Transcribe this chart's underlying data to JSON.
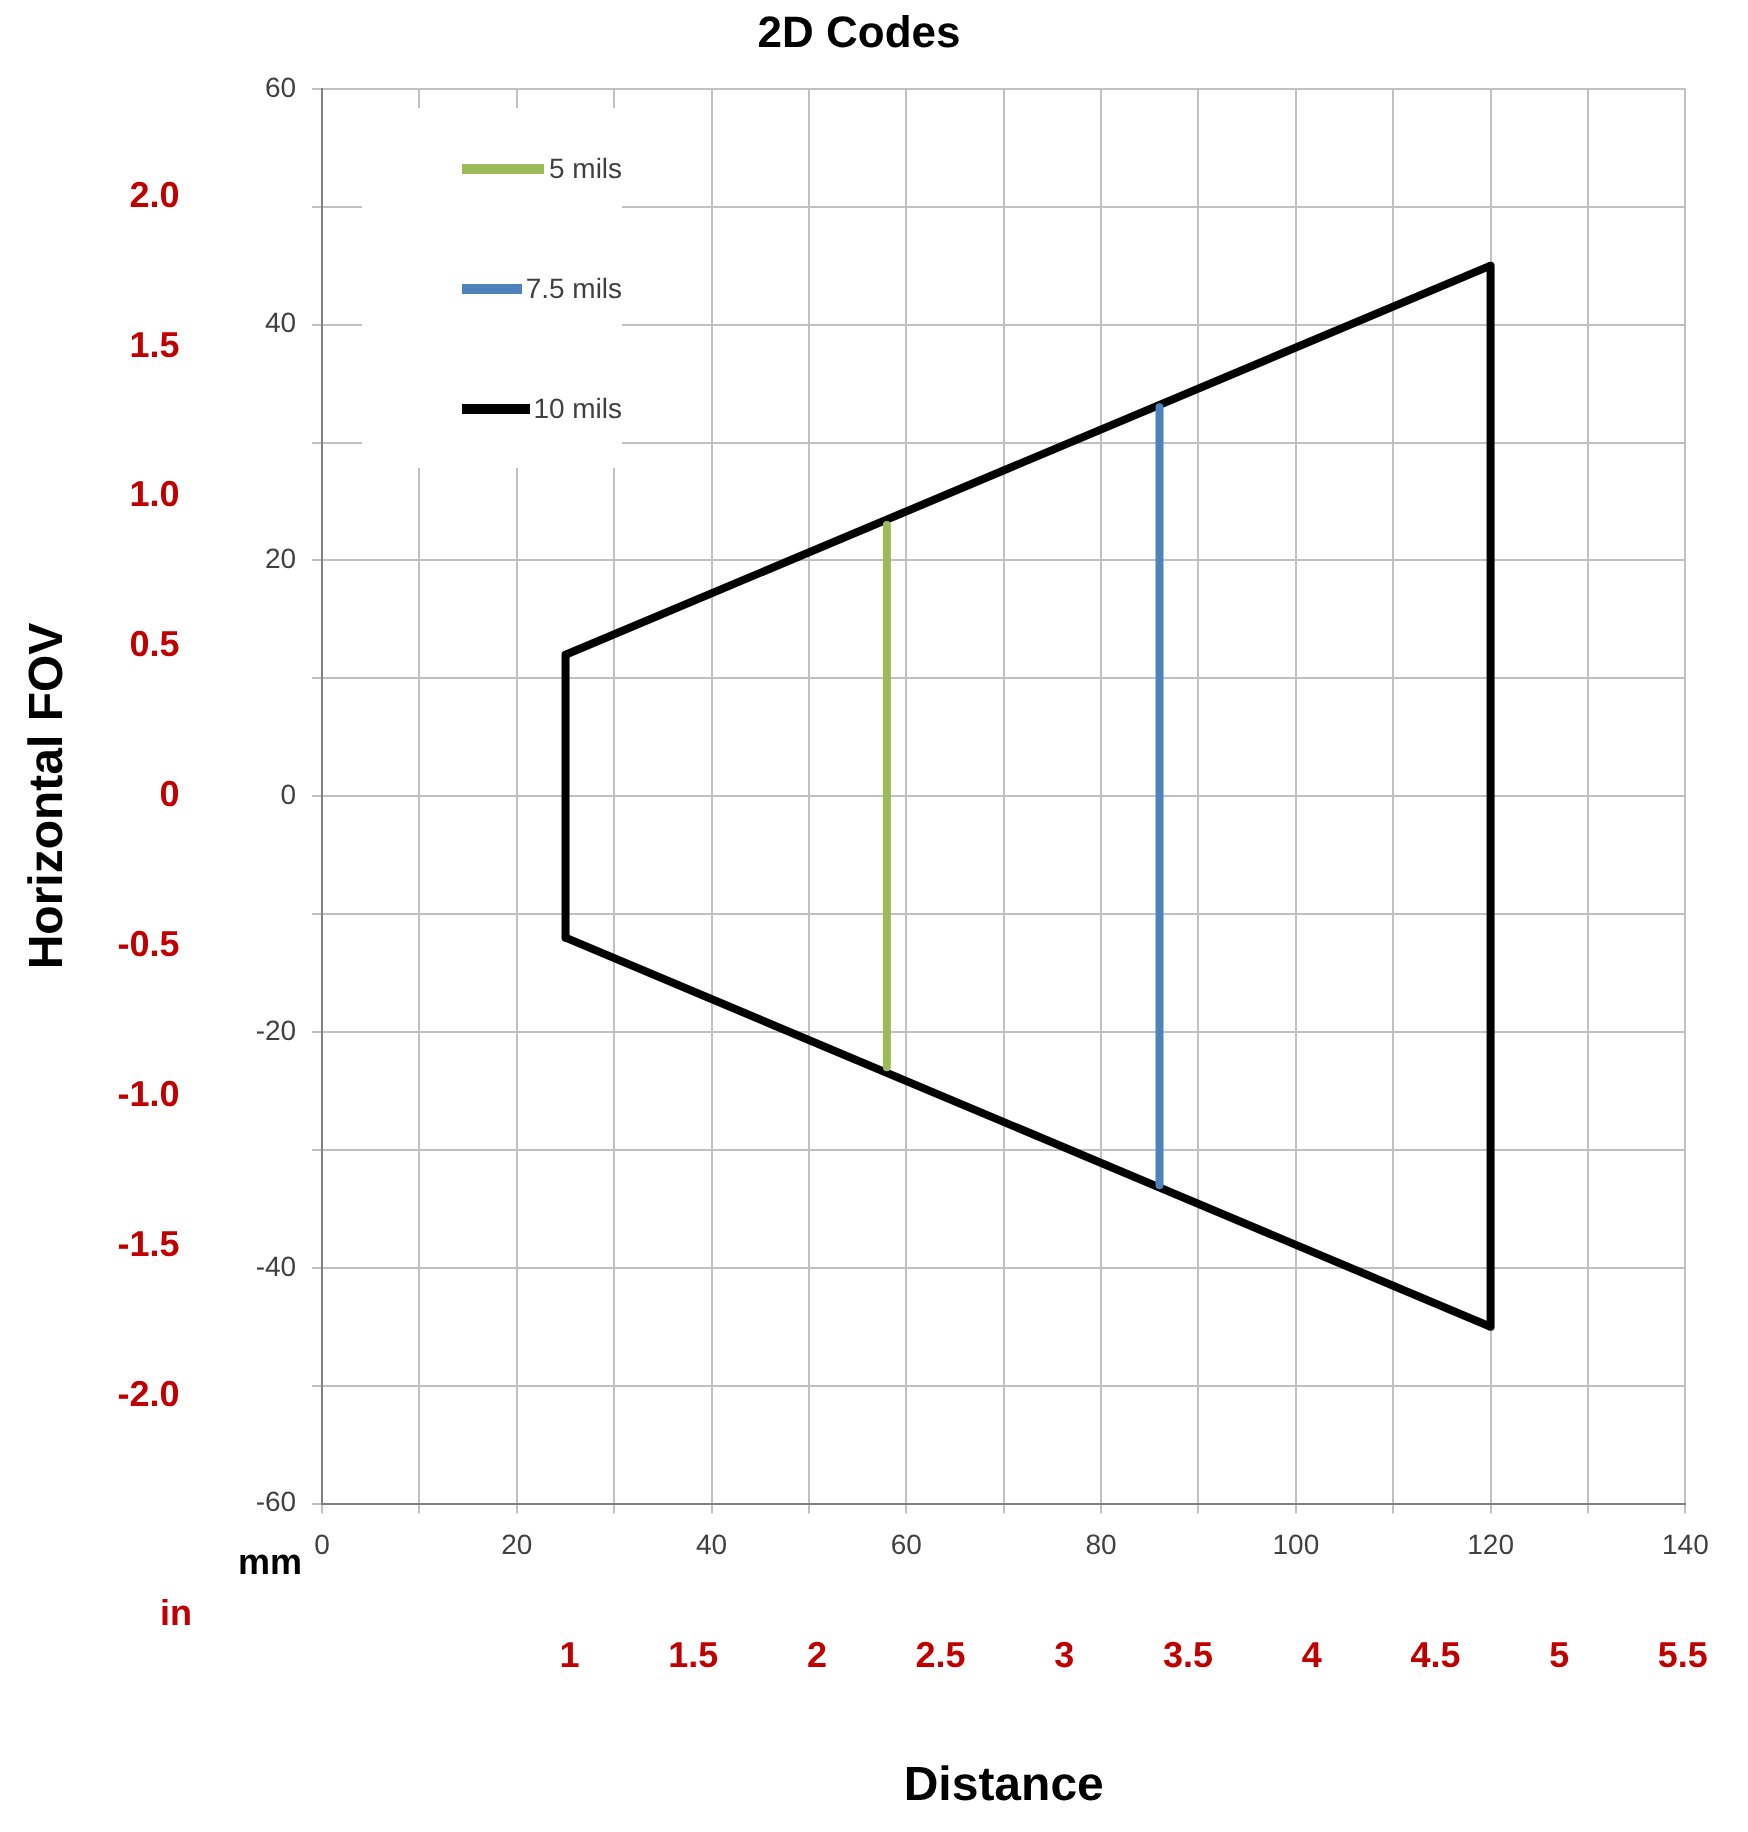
{
  "chart_data": {
    "type": "line",
    "title": "2D Codes",
    "xlabel": "Distance",
    "y2label": "Horizontal FOV",
    "annotations": [
      "mm",
      "in"
    ],
    "xlim": [
      0,
      140
    ],
    "xticks": [
      0,
      {
        "value": 10,
        "label": null
      },
      20,
      {
        "value": 30,
        "label": null
      },
      40,
      {
        "value": 50,
        "label": null
      },
      60,
      {
        "value": 70,
        "label": null
      },
      80,
      {
        "value": 90,
        "label": null
      },
      100,
      {
        "value": 110,
        "label": null
      },
      120,
      {
        "value": 130,
        "label": null
      },
      140
    ],
    "ylim": [
      -60,
      60
    ],
    "yticks": [
      -60,
      {
        "value": -50,
        "label": null
      },
      -40,
      {
        "value": -30,
        "label": null
      },
      -20,
      {
        "value": -10,
        "label": null
      },
      0,
      {
        "value": 10,
        "label": null
      },
      20,
      {
        "value": 30,
        "label": null
      },
      40,
      {
        "value": 50,
        "label": null
      },
      60
    ],
    "x2lim": [
      0,
      5.51
    ],
    "x2ticks": [
      1,
      1.5,
      2,
      2.5,
      3,
      3.5,
      4,
      4.5,
      5,
      5.5
    ],
    "y2lim": [
      -2.36,
      2.36
    ],
    "y2ticks": [
      {
        "value": -2,
        "label": "-2.0"
      },
      -1.5,
      {
        "value": -1,
        "label": "-1.0"
      },
      -0.5,
      0,
      0.5,
      {
        "value": 1,
        "label": "1.0"
      },
      1.5,
      {
        "value": 2,
        "label": "2.0"
      }
    ],
    "grid": true,
    "legend": "top left",
    "marker": "none",
    "line_style": "solid",
    "series": [
      {
        "name": "5 mils",
        "color": "#9bbb59",
        "x": [
          58,
          58
        ],
        "values": [
          23,
          -23
        ]
      },
      {
        "name": "7.5 mils",
        "color": "#4f81bd",
        "x": [
          86,
          86
        ],
        "values": [
          33,
          -33
        ]
      },
      {
        "name": "10 mils",
        "color": "#000000",
        "x": [
          25,
          120
        ],
        "values": [
          12,
          45
        ]
      },
      {
        "color": "#000000",
        "x": [
          120,
          120
        ],
        "values": [
          45,
          -45
        ]
      },
      {
        "color": "#000000",
        "x": [
          25,
          120
        ],
        "values": [
          -12,
          -45
        ]
      },
      {
        "color": "#000000",
        "x": [
          25,
          25
        ],
        "values": [
          12,
          -12
        ]
      }
    ]
  }
}
